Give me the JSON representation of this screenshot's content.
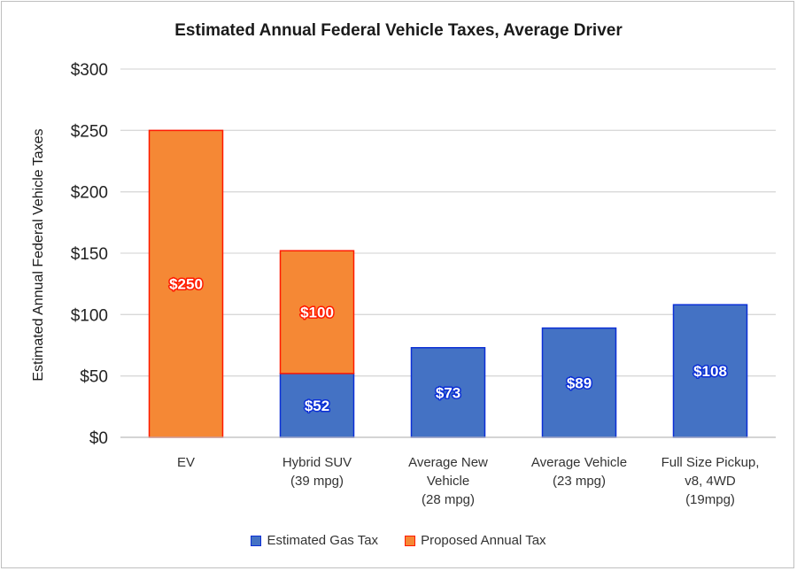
{
  "chart_data": {
    "type": "bar",
    "stacked": true,
    "title": "Estimated Annual  Federal Vehicle Taxes, Average Driver",
    "xlabel": "",
    "ylabel": "Estimated Annual Federal Vehicle Taxes",
    "ylim": [
      0,
      300
    ],
    "yticks": [
      0,
      50,
      100,
      150,
      200,
      250,
      300
    ],
    "ytick_labels": [
      "$0",
      "$50",
      "$100",
      "$150",
      "$200",
      "$250",
      "$300"
    ],
    "grid": true,
    "legend_position": "bottom",
    "categories": [
      [
        "EV"
      ],
      [
        "Hybrid SUV",
        "(39 mpg)"
      ],
      [
        "Average New",
        "Vehicle",
        "(28 mpg)"
      ],
      [
        "Average Vehicle",
        "(23 mpg)"
      ],
      [
        "Full Size Pickup,",
        "v8, 4WD",
        "(19mpg)"
      ]
    ],
    "series": [
      {
        "name": "Estimated Gas Tax",
        "values": [
          0,
          52,
          73,
          89,
          108
        ],
        "labels": [
          "",
          "$52",
          "$73",
          "$89",
          "$108"
        ],
        "color": "#4472C4",
        "border": "#0b2fd6"
      },
      {
        "name": "Proposed Annual Tax",
        "values": [
          250,
          100,
          0,
          0,
          0
        ],
        "labels": [
          "$250",
          "$100",
          "",
          "",
          ""
        ],
        "color": "#F58835",
        "border": "#ff1a00"
      }
    ]
  }
}
